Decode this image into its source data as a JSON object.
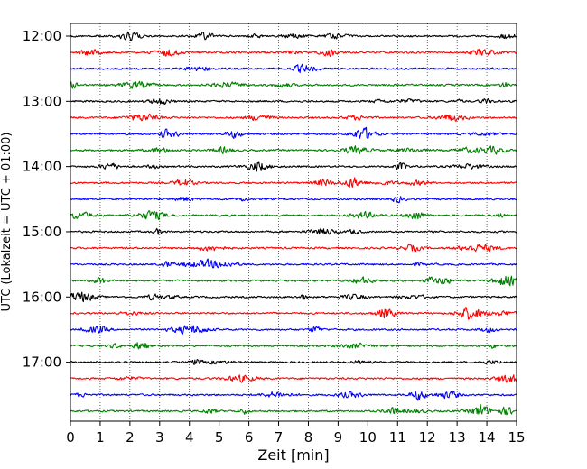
{
  "chart_data": {
    "type": "line",
    "title": "",
    "xlabel": "Zeit  [min]",
    "ylabel": "UTC (Lokalzeit = UTC + 01:00)",
    "xlim": [
      0,
      15
    ],
    "x_ticks": [
      "0",
      "1",
      "2",
      "3",
      "4",
      "5",
      "6",
      "7",
      "8",
      "9",
      "10",
      "11",
      "12",
      "13",
      "14",
      "15"
    ],
    "y_ticks": [
      "12:00",
      "13:00",
      "14:00",
      "15:00",
      "16:00",
      "17:00"
    ],
    "trace_start_utc": "12:00",
    "trace_interval_min": 15,
    "trace_count": 24,
    "trace_colors": [
      "#000000",
      "#ff0000",
      "#0000ff",
      "#008000"
    ],
    "grid": "vertical dotted lines at each minute",
    "legend": "none"
  }
}
